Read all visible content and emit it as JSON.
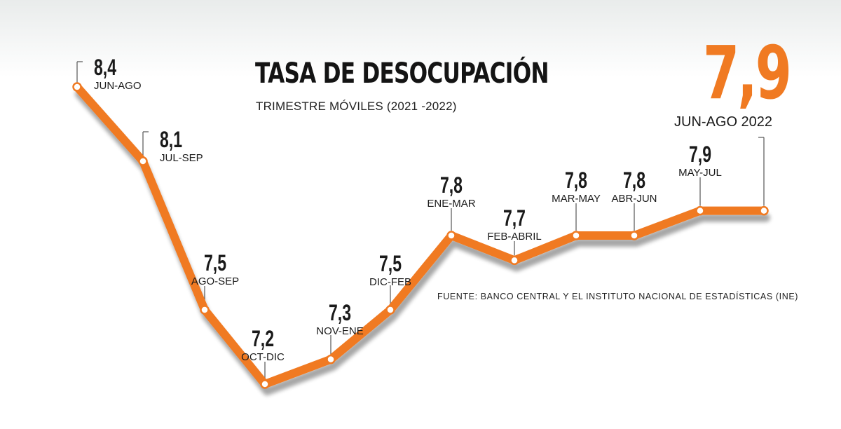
{
  "header": {
    "title": "TASA DE DESOCUPACIÓN",
    "subtitle": "TRIMESTRE MÓVILES (2021 -2022)",
    "highlight_value": "7,9",
    "highlight_period": "JUN-AGO 2022"
  },
  "source": "FUENTE: BANCO CENTRAL Y EL INSTITUTO NACIONAL DE ESTADÍSTICAS (INE)",
  "colors": {
    "line": "#f07a22",
    "accent": "#f07a22",
    "text": "#1a1a1a",
    "marker_fill": "#ffffff"
  },
  "chart_data": {
    "type": "line",
    "title": "TASA DE DESOCUPACIÓN",
    "subtitle": "TRIMESTRE MÓVILES (2021 -2022)",
    "categories": [
      "JUN-AGO",
      "JUL-SEP",
      "AGO-SEP",
      "OCT-DIC",
      "NOV-ENE",
      "DIC-FEB",
      "ENE-MAR",
      "FEB-ABRIL",
      "MAR-MAY",
      "ABR-JUN",
      "MAY-JUL",
      "JUN-AGO 2022"
    ],
    "values": [
      8.4,
      8.1,
      7.5,
      7.2,
      7.3,
      7.5,
      7.8,
      7.7,
      7.8,
      7.8,
      7.9,
      7.9
    ],
    "value_labels": [
      "8,4",
      "8,1",
      "7,5",
      "7,2",
      "7,3",
      "7,5",
      "7,8",
      "7,7",
      "7,8",
      "7,8",
      "7,9",
      "7,9"
    ],
    "show_value_label": [
      true,
      true,
      true,
      true,
      true,
      true,
      true,
      true,
      true,
      true,
      true,
      false
    ],
    "xlabel": "",
    "ylabel": "",
    "grid": false,
    "legend": "none"
  }
}
